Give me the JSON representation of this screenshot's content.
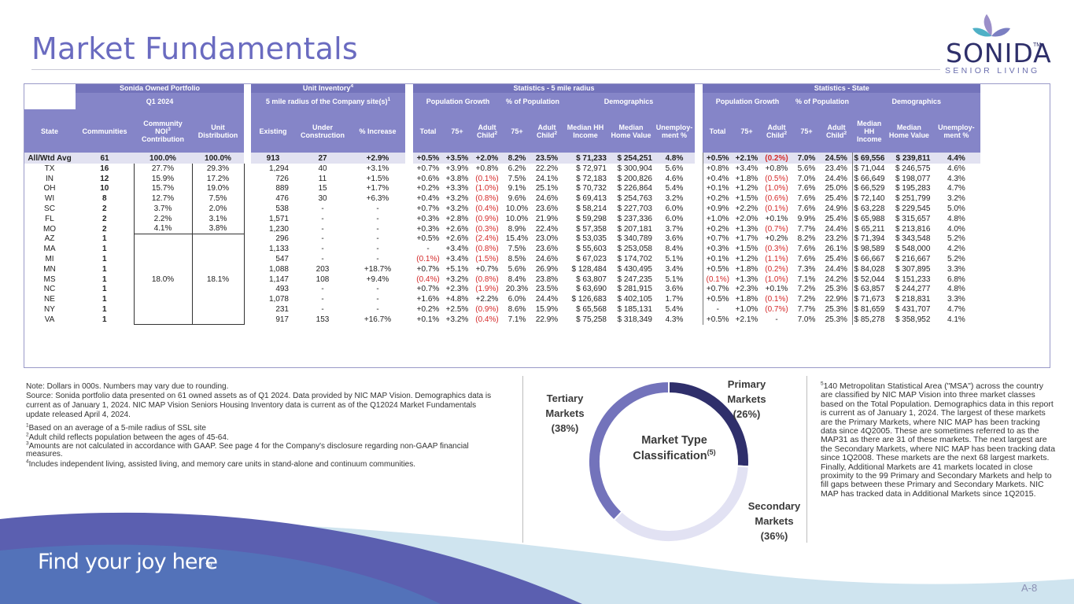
{
  "title": "Market Fundamentals",
  "logo": {
    "word": "SONIDA",
    "tm": "TM",
    "sub": "SENIOR LIVING",
    "icon": "petal-logo-icon"
  },
  "table": {
    "group_headers": [
      "Sonida Owned Portfolio",
      "Unit Inventory",
      "Statistics - 5 mile radius",
      "Statistics - State"
    ],
    "group_header_sups": {
      "unit_inventory": "4"
    },
    "sub_headers": [
      "Q1 2024",
      "5 mile radius of the Company site(s)",
      "Population Growth",
      "% of Population",
      "Demographics",
      "Population Growth",
      "% of Population",
      "Demographics"
    ],
    "sub_header_sups": {
      "radius": "1"
    },
    "col_headers": {
      "state": "State",
      "communities": "Communities",
      "noi": "Community NOI",
      "noi_sup": "3",
      "noi_2": "Contribution",
      "unit_dist": "Unit Distribution",
      "existing": "Existing",
      "under_construction": "Under Construction",
      "pct_increase": "% Increase",
      "total": "Total",
      "p75": "75+",
      "adult_child": "Adult Child",
      "adult_sup": "2",
      "hh_income": "Median HH Income",
      "home_value": "Median Home Value",
      "unemployment": "Unemploy-ment %",
      "s_hh_income": "Median HH Income",
      "s_home_value": "Median Home Value"
    },
    "merged": {
      "noi": "18.0%",
      "unit_dist": "18.1%"
    },
    "rows": [
      [
        "All/Wtd Avg",
        "61",
        "100.0%",
        "100.0%",
        "913",
        "27",
        "+2.9%",
        "+0.5%",
        "+3.5%",
        "+2.0%",
        "8.2%",
        "23.5%",
        "$ 71,233",
        "$ 254,251",
        "4.8%",
        "+0.5%",
        "+2.1%",
        "(0.2%)",
        "7.0%",
        "24.5%",
        "$ 69,556",
        "$ 239,811",
        "4.4%"
      ],
      [
        "TX",
        "16",
        "27.7%",
        "29.3%",
        "1,294",
        "40",
        "+3.1%",
        "+0.7%",
        "+3.9%",
        "+0.8%",
        "6.2%",
        "22.2%",
        "$ 72,971",
        "$ 300,904",
        "5.6%",
        "+0.8%",
        "+3.4%",
        "+0.8%",
        "5.6%",
        "23.4%",
        "$ 71,044",
        "$ 246,575",
        "4.6%"
      ],
      [
        "IN",
        "12",
        "15.9%",
        "17.2%",
        "726",
        "11",
        "+1.5%",
        "+0.6%",
        "+3.8%",
        "(0.1%)",
        "7.5%",
        "24.1%",
        "$ 72,183",
        "$ 200,826",
        "4.6%",
        "+0.4%",
        "+1.8%",
        "(0.5%)",
        "7.0%",
        "24.4%",
        "$ 66,649",
        "$ 198,077",
        "4.3%"
      ],
      [
        "OH",
        "10",
        "15.7%",
        "19.0%",
        "889",
        "15",
        "+1.7%",
        "+0.2%",
        "+3.3%",
        "(1.0%)",
        "9.1%",
        "25.1%",
        "$ 70,732",
        "$ 226,864",
        "5.4%",
        "+0.1%",
        "+1.2%",
        "(1.0%)",
        "7.6%",
        "25.0%",
        "$ 66,529",
        "$ 195,283",
        "4.7%"
      ],
      [
        "WI",
        "8",
        "12.7%",
        "7.5%",
        "476",
        "30",
        "+6.3%",
        "+0.4%",
        "+3.2%",
        "(0.8%)",
        "9.6%",
        "24.6%",
        "$ 69,413",
        "$ 254,763",
        "3.2%",
        "+0.2%",
        "+1.5%",
        "(0.6%)",
        "7.6%",
        "25.4%",
        "$ 72,140",
        "$ 251,799",
        "3.2%"
      ],
      [
        "SC",
        "2",
        "3.7%",
        "2.0%",
        "538",
        "-",
        "-",
        "+0.7%",
        "+3.2%",
        "(0.4%)",
        "10.0%",
        "23.6%",
        "$ 58,214",
        "$ 227,703",
        "6.0%",
        "+0.9%",
        "+2.2%",
        "(0.1%)",
        "7.6%",
        "24.9%",
        "$ 63,228",
        "$ 229,545",
        "5.0%"
      ],
      [
        "FL",
        "2",
        "2.2%",
        "3.1%",
        "1,571",
        "-",
        "-",
        "+0.3%",
        "+2.8%",
        "(0.9%)",
        "10.0%",
        "21.9%",
        "$ 59,298",
        "$ 237,336",
        "6.0%",
        "+1.0%",
        "+2.0%",
        "+0.1%",
        "9.9%",
        "25.4%",
        "$ 65,988",
        "$ 315,657",
        "4.8%"
      ],
      [
        "MO",
        "2",
        "4.1%",
        "3.8%",
        "1,230",
        "-",
        "-",
        "+0.3%",
        "+2.6%",
        "(0.3%)",
        "8.9%",
        "22.4%",
        "$ 57,358",
        "$ 207,181",
        "3.7%",
        "+0.2%",
        "+1.3%",
        "(0.7%)",
        "7.7%",
        "24.4%",
        "$ 65,211",
        "$ 213,816",
        "4.0%"
      ],
      [
        "AZ",
        "1",
        "",
        "",
        "296",
        "-",
        "-",
        "+0.5%",
        "+2.6%",
        "(2.4%)",
        "15.4%",
        "23.0%",
        "$ 53,035",
        "$ 340,789",
        "3.6%",
        "+0.7%",
        "+1.7%",
        "+0.2%",
        "8.2%",
        "23.2%",
        "$ 71,394",
        "$ 343,548",
        "5.2%"
      ],
      [
        "MA",
        "1",
        "",
        "",
        "1,133",
        "-",
        "-",
        "-",
        "+3.4%",
        "(0.8%)",
        "7.5%",
        "23.6%",
        "$ 55,603",
        "$ 253,058",
        "8.4%",
        "+0.3%",
        "+1.5%",
        "(0.3%)",
        "7.6%",
        "26.1%",
        "$ 98,589",
        "$ 548,000",
        "4.2%"
      ],
      [
        "MI",
        "1",
        "",
        "",
        "547",
        "-",
        "-",
        "(0.1%)",
        "+3.4%",
        "(1.5%)",
        "8.5%",
        "24.6%",
        "$ 67,023",
        "$ 174,702",
        "5.1%",
        "+0.1%",
        "+1.2%",
        "(1.1%)",
        "7.6%",
        "25.4%",
        "$ 66,667",
        "$ 216,667",
        "5.2%"
      ],
      [
        "MN",
        "1",
        "",
        "",
        "1,088",
        "203",
        "+18.7%",
        "+0.7%",
        "+5.1%",
        "+0.7%",
        "5.6%",
        "26.9%",
        "$ 128,484",
        "$ 430,495",
        "3.4%",
        "+0.5%",
        "+1.8%",
        "(0.2%)",
        "7.3%",
        "24.4%",
        "$ 84,028",
        "$ 307,895",
        "3.3%"
      ],
      [
        "MS",
        "1",
        "",
        "",
        "1,147",
        "108",
        "+9.4%",
        "(0.4%)",
        "+3.2%",
        "(0.8%)",
        "8.4%",
        "23.8%",
        "$ 63,807",
        "$ 247,235",
        "5.1%",
        "(0.1%)",
        "+1.3%",
        "(1.0%)",
        "7.1%",
        "24.2%",
        "$ 52,044",
        "$ 151,233",
        "6.8%"
      ],
      [
        "NC",
        "1",
        "",
        "",
        "493",
        "-",
        "-",
        "+0.7%",
        "+2.3%",
        "(1.9%)",
        "20.3%",
        "23.5%",
        "$ 63,690",
        "$ 281,915",
        "3.6%",
        "+0.7%",
        "+2.3%",
        "+0.1%",
        "7.2%",
        "25.3%",
        "$ 63,857",
        "$ 244,277",
        "4.8%"
      ],
      [
        "NE",
        "1",
        "",
        "",
        "1,078",
        "-",
        "-",
        "+1.6%",
        "+4.8%",
        "+2.2%",
        "6.0%",
        "24.4%",
        "$ 126,683",
        "$ 402,105",
        "1.7%",
        "+0.5%",
        "+1.8%",
        "(0.1%)",
        "7.2%",
        "22.9%",
        "$ 71,673",
        "$ 218,831",
        "3.3%"
      ],
      [
        "NY",
        "1",
        "",
        "",
        "231",
        "-",
        "-",
        "+0.2%",
        "+2.5%",
        "(0.9%)",
        "8.6%",
        "15.9%",
        "$ 65,568",
        "$ 185,131",
        "5.4%",
        "-",
        "+1.0%",
        "(0.7%)",
        "7.7%",
        "25.3%",
        "$ 81,659",
        "$ 431,707",
        "4.7%"
      ],
      [
        "VA",
        "1",
        "",
        "",
        "917",
        "153",
        "+16.7%",
        "+0.1%",
        "+3.2%",
        "(0.4%)",
        "7.1%",
        "22.9%",
        "$ 75,258",
        "$ 318,349",
        "4.3%",
        "+0.5%",
        "+2.1%",
        "-",
        "7.0%",
        "25.3%",
        "$ 85,278",
        "$ 358,952",
        "4.1%"
      ]
    ]
  },
  "notes": {
    "n0": "Note: Dollars in 000s. Numbers may vary due to rounding.",
    "n1": "Source:  Sonida portfolio data presented on 61 owned assets as of Q1 2024. Data provided by NIC MAP Vision. Demographics data is current as of January 1, 2024.  NIC MAP Vision Seniors Housing Inventory data is current as of the Q12024 Market Fundamentals update released April 4, 2024.",
    "f1_sup": "1",
    "f1": "Based on an average of a 5-mile radius of SSL site",
    "f2_sup": "2",
    "f2": "Adult child reflects population between the ages of 45-64.",
    "f3_sup": "3",
    "f3": "Amounts are not calculated in accordance with GAAP. See page 4 for the Company's disclosure regarding non-GAAP financial measures.",
    "f4_sup": "4",
    "f4": "Includes independent living, assisted living, and memory care units in stand-alone and continuum communities."
  },
  "chart_data": {
    "type": "pie",
    "donut": true,
    "center_label": "Market Type Classification",
    "center_sup": "(5)",
    "labels": [
      "Primary Markets (26%)",
      "Secondary Markets (36%)",
      "Tertiary Markets (38%)"
    ],
    "label_lines": {
      "primary": [
        "Primary",
        "Markets",
        "(26%)"
      ],
      "secondary": [
        "Secondary",
        "Markets",
        "(36%)"
      ],
      "tertiary": [
        "Tertiary",
        "Markets",
        "(38%)"
      ]
    },
    "values": [
      26,
      36,
      38
    ],
    "colors": [
      "#2f2f6b",
      "#e2e2f3",
      "#7373bb"
    ]
  },
  "footnote5": {
    "sup": "5",
    "text": "140 Metropolitan Statistical Area (\"MSA\") across the country are classified by NIC MAP Vision into three market classes based on the Total Population. Demographics data in this report is current as of January 1, 2024. The largest of these markets are the Primary Markets, where NIC MAP has been tracking data since 4Q2005.  These are sometimes referred to as the MAP31 as there are 31 of these markets.  The next largest are the Secondary Markets, where NIC MAP has been tracking data since 1Q2008.  These markets are the next 68 largest markets.  Finally, Additional Markets are 41 markets located in close proximity to the 99 Primary and Secondary Markets and help to fill gaps between these Primary and Secondary Markets.  NIC MAP has tracked data in Additional Markets since 1Q2015."
  },
  "footer": {
    "tagline": "Find your joy here",
    "tagline_tm": "TM",
    "page": "A-8"
  }
}
